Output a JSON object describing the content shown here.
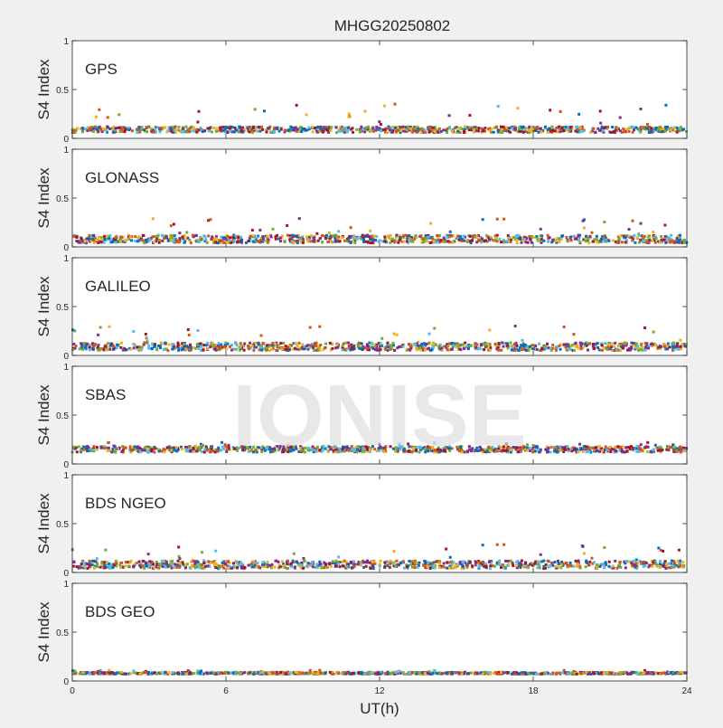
{
  "chart_data": {
    "type": "scatter",
    "title": "MHGG20250802",
    "watermark": "IONISE",
    "xlabel": "UT(h)",
    "xlim": [
      0,
      24
    ],
    "xticks": [
      0,
      6,
      12,
      18,
      24
    ],
    "ylim": [
      0,
      1
    ],
    "yticks": [
      0,
      0.5,
      1
    ],
    "grid": false,
    "series_colors": [
      "#0072BD",
      "#D95319",
      "#EDB120",
      "#7E2F8E",
      "#77AC30",
      "#4DBEEE",
      "#A2142F"
    ],
    "panels": [
      {
        "label": "GPS",
        "ylabel": "S4 Index",
        "baseline": 0.09,
        "spread": 0.03,
        "spikes": 0.35,
        "notable_points": [
          {
            "x": 7.5,
            "y": 0.28
          },
          {
            "x": 12.6,
            "y": 0.35
          },
          {
            "x": 10.8,
            "y": 0.22
          }
        ]
      },
      {
        "label": "GLONASS",
        "ylabel": "S4 Index",
        "baseline": 0.08,
        "spread": 0.04,
        "spikes": 0.3,
        "notable_points": [
          {
            "x": 5.4,
            "y": 0.28
          },
          {
            "x": 14.0,
            "y": 0.24
          },
          {
            "x": 22.2,
            "y": 0.24
          }
        ]
      },
      {
        "label": "GALILEO",
        "ylabel": "S4 Index",
        "baseline": 0.09,
        "spread": 0.04,
        "spikes": 0.3,
        "notable_points": [
          {
            "x": 16.3,
            "y": 0.26
          },
          {
            "x": 17.3,
            "y": 0.3
          },
          {
            "x": 22.7,
            "y": 0.24
          }
        ]
      },
      {
        "label": "SBAS",
        "ylabel": "S4 Index",
        "baseline": 0.15,
        "spread": 0.03,
        "spikes": 0.22,
        "notable_points": [
          {
            "x": 12.0,
            "y": 0.2
          },
          {
            "x": 18.0,
            "y": 0.19
          }
        ]
      },
      {
        "label": "BDS NGEO",
        "ylabel": "S4 Index",
        "baseline": 0.08,
        "spread": 0.04,
        "spikes": 0.3,
        "notable_points": [
          {
            "x": 1.3,
            "y": 0.23
          },
          {
            "x": 5.6,
            "y": 0.22
          },
          {
            "x": 14.6,
            "y": 0.24
          },
          {
            "x": 22.9,
            "y": 0.25
          }
        ]
      },
      {
        "label": "BDS GEO",
        "ylabel": "S4 Index",
        "baseline": 0.08,
        "spread": 0.01,
        "spikes": 0.11,
        "notable_points": []
      }
    ]
  }
}
